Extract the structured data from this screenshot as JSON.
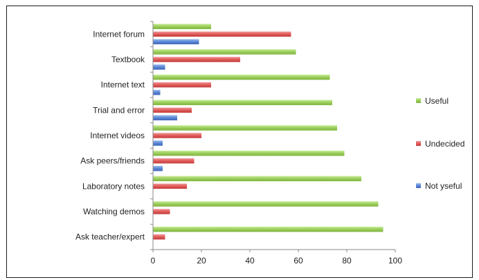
{
  "chart_data": {
    "type": "bar",
    "orientation": "horizontal",
    "categories": [
      "Internet forum",
      "Textbook",
      "Internet text",
      "Trial and error",
      "Internet videos",
      "Ask peers/friends",
      "Laboratory notes",
      "Watching demos",
      "Ask teacher/expert"
    ],
    "series": [
      {
        "name": "Useful",
        "color": "#9acd5a",
        "values": [
          24,
          59,
          73,
          74,
          76,
          79,
          86,
          93,
          95
        ]
      },
      {
        "name": "Undecided",
        "color": "#e05a5a",
        "values": [
          57,
          36,
          24,
          16,
          20,
          17,
          14,
          7,
          5
        ]
      },
      {
        "name": "Not yseful",
        "color": "#5a86d6",
        "values": [
          19,
          5,
          3,
          10,
          4,
          4,
          0,
          0,
          0
        ]
      }
    ],
    "xlim": [
      0,
      100
    ],
    "xticks": [
      0,
      20,
      40,
      60,
      80,
      100
    ],
    "title": "",
    "xlabel": "",
    "ylabel": "",
    "grid": false,
    "legend_position": "right"
  }
}
